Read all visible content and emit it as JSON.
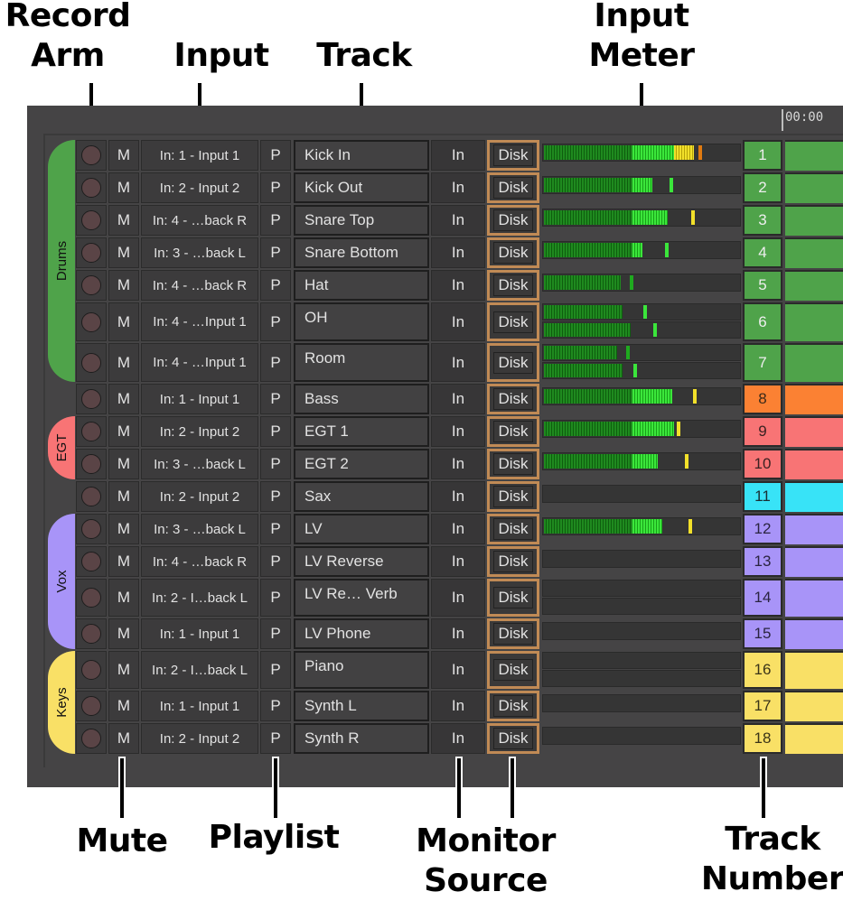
{
  "callouts": {
    "record_arm": "Record\nArm",
    "input": "Input",
    "track": "Track",
    "input_meter": "Input\nMeter",
    "mute": "Mute",
    "playlist": "Playlist",
    "monitor_source": "Monitor\nSource",
    "track_number": "Track\nNumber"
  },
  "timeline": {
    "time": "00:00"
  },
  "groups": [
    {
      "name": "Drums",
      "color": "#4fa34a",
      "text_color": "#111111"
    },
    {
      "name": "EGT",
      "color": "#f87475",
      "text_color": "#111111"
    },
    {
      "name": "Vox",
      "color": "#a894f8",
      "text_color": "#111111"
    },
    {
      "name": "Keys",
      "color": "#f9e066",
      "text_color": "#111111"
    }
  ],
  "colors": {
    "panel": "#454445",
    "disk_border": "#c08a55",
    "record_dot": "#5a4446",
    "meter_green": "#1f8a1f",
    "meter_bright": "#3be63b",
    "meter_yellow": "#f2e02a",
    "meter_orange": "#e07a10"
  },
  "tracks": [
    {
      "number": "1",
      "rec": "",
      "mute": "M",
      "input": "In: 1 - Input 1",
      "playlist": "P",
      "name": "Kick In",
      "monitor": "In",
      "source": "Disk",
      "color": "#4fa34a",
      "num_color": "#eeeeee"
    },
    {
      "number": "2",
      "rec": "",
      "mute": "M",
      "input": "In: 2 - Input 2",
      "playlist": "P",
      "name": "Kick Out",
      "monitor": "In",
      "source": "Disk",
      "color": "#4fa34a",
      "num_color": "#eeeeee"
    },
    {
      "number": "3",
      "rec": "",
      "mute": "M",
      "input": "In: 4 - …back R",
      "playlist": "P",
      "name": "Snare Top",
      "monitor": "In",
      "source": "Disk",
      "color": "#4fa34a",
      "num_color": "#eeeeee"
    },
    {
      "number": "4",
      "rec": "",
      "mute": "M",
      "input": "In: 3 - …back L",
      "playlist": "P",
      "name": "Snare Bottom",
      "monitor": "In",
      "source": "Disk",
      "color": "#4fa34a",
      "num_color": "#eeeeee"
    },
    {
      "number": "5",
      "rec": "",
      "mute": "M",
      "input": "In: 4 - …back R",
      "playlist": "P",
      "name": "Hat",
      "monitor": "In",
      "source": "Disk",
      "color": "#4fa34a",
      "num_color": "#eeeeee"
    },
    {
      "number": "6",
      "rec": "",
      "mute": "M",
      "input": "In: 4 - …Input 1",
      "playlist": "P",
      "name": "OH",
      "monitor": "In",
      "source": "Disk",
      "color": "#4fa34a",
      "num_color": "#eeeeee"
    },
    {
      "number": "7",
      "rec": "",
      "mute": "M",
      "input": "In: 4 - …Input 1",
      "playlist": "P",
      "name": "Room",
      "monitor": "In",
      "source": "Disk",
      "color": "#4fa34a",
      "num_color": "#eeeeee"
    },
    {
      "number": "8",
      "rec": "",
      "mute": "M",
      "input": "In: 1 - Input 1",
      "playlist": "P",
      "name": "Bass",
      "monitor": "In",
      "source": "Disk",
      "color": "#fb8133",
      "num_color": "#3a2a1a"
    },
    {
      "number": "9",
      "rec": "",
      "mute": "M",
      "input": "In: 2 - Input 2",
      "playlist": "P",
      "name": "EGT 1",
      "monitor": "In",
      "source": "Disk",
      "color": "#f87475",
      "num_color": "#3a2222"
    },
    {
      "number": "10",
      "rec": "",
      "mute": "M",
      "input": "In: 3 - …back L",
      "playlist": "P",
      "name": "EGT 2",
      "monitor": "In",
      "source": "Disk",
      "color": "#f87475",
      "num_color": "#3a2222"
    },
    {
      "number": "11",
      "rec": "",
      "mute": "M",
      "input": "In: 2 - Input 2",
      "playlist": "P",
      "name": "Sax",
      "monitor": "In",
      "source": "Disk",
      "color": "#38e3f7",
      "num_color": "#1a2e33"
    },
    {
      "number": "12",
      "rec": "",
      "mute": "M",
      "input": "In: 3 - …back L",
      "playlist": "P",
      "name": "LV",
      "monitor": "In",
      "source": "Disk",
      "color": "#a894f8",
      "num_color": "#2a2440"
    },
    {
      "number": "13",
      "rec": "",
      "mute": "M",
      "input": "In: 4 - …back R",
      "playlist": "P",
      "name": "LV Reverse",
      "monitor": "In",
      "source": "Disk",
      "color": "#a894f8",
      "num_color": "#2a2440"
    },
    {
      "number": "14",
      "rec": "",
      "mute": "M",
      "input": "In: 2 - I…back L",
      "playlist": "P",
      "name": "LV Re… Verb",
      "monitor": "In",
      "source": "Disk",
      "color": "#a894f8",
      "num_color": "#2a2440"
    },
    {
      "number": "15",
      "rec": "",
      "mute": "M",
      "input": "In: 1 - Input 1",
      "playlist": "P",
      "name": "LV Phone",
      "monitor": "In",
      "source": "Disk",
      "color": "#a894f8",
      "num_color": "#2a2440"
    },
    {
      "number": "16",
      "rec": "",
      "mute": "M",
      "input": "In: 2 - I…back L",
      "playlist": "P",
      "name": "Piano",
      "monitor": "In",
      "source": "Disk",
      "color": "#f9e066",
      "num_color": "#3a3418"
    },
    {
      "number": "17",
      "rec": "",
      "mute": "M",
      "input": "In: 1 - Input 1",
      "playlist": "P",
      "name": "Synth L",
      "monitor": "In",
      "source": "Disk",
      "color": "#f9e066",
      "num_color": "#3a3418"
    },
    {
      "number": "18",
      "rec": "",
      "mute": "M",
      "input": "In: 2 - Input 2",
      "playlist": "P",
      "name": "Synth R",
      "monitor": "In",
      "source": "Disk",
      "color": "#f9e066",
      "num_color": "#3a3418"
    }
  ],
  "meters": [
    {
      "channels": [
        {
          "fill": 0.76,
          "bright_from": 0.45,
          "yellow_from": 0.66,
          "peak": 0.79,
          "peak_color": "#e07a10"
        }
      ]
    },
    {
      "channels": [
        {
          "fill": 0.55,
          "bright_from": 0.45,
          "peak": 0.64,
          "peak_color": "#3be63b"
        }
      ]
    },
    {
      "channels": [
        {
          "fill": 0.63,
          "bright_from": 0.45,
          "peak": 0.75,
          "peak_color": "#f2e02a"
        }
      ]
    },
    {
      "channels": [
        {
          "fill": 0.5,
          "bright_from": 0.45,
          "peak": 0.62,
          "peak_color": "#3be63b"
        }
      ]
    },
    {
      "channels": [
        {
          "fill": 0.39,
          "bright_from": 1.0,
          "peak": 0.44,
          "peak_color": "#1faa1f"
        }
      ]
    },
    {
      "channels": [
        {
          "fill": 0.4,
          "bright_from": 1.0,
          "peak": 0.51,
          "peak_color": "#3be63b"
        },
        {
          "fill": 0.44,
          "bright_from": 1.0,
          "peak": 0.56,
          "peak_color": "#3be63b"
        }
      ]
    },
    {
      "channels": [
        {
          "fill": 0.37,
          "bright_from": 1.0,
          "peak": 0.42,
          "peak_color": "#1faa1f"
        },
        {
          "fill": 0.4,
          "bright_from": 1.0,
          "peak": 0.46,
          "peak_color": "#3be63b"
        }
      ]
    },
    {
      "channels": [
        {
          "fill": 0.65,
          "bright_from": 0.45,
          "peak": 0.76,
          "peak_color": "#f2e02a"
        }
      ]
    },
    {
      "channels": [
        {
          "fill": 0.66,
          "bright_from": 0.45,
          "peak": 0.68,
          "peak_color": "#f2e02a"
        }
      ]
    },
    {
      "channels": [
        {
          "fill": 0.58,
          "bright_from": 0.45,
          "peak": 0.72,
          "peak_color": "#f2e02a"
        }
      ]
    },
    {
      "channels": [
        {
          "fill": 0.0,
          "bright_from": 1.0,
          "peak": -1,
          "peak_color": ""
        }
      ]
    },
    {
      "channels": [
        {
          "fill": 0.6,
          "bright_from": 0.45,
          "peak": 0.74,
          "peak_color": "#f2e02a"
        }
      ]
    },
    {
      "channels": [
        {
          "fill": 0.0,
          "bright_from": 1.0,
          "peak": -1,
          "peak_color": ""
        }
      ]
    },
    {
      "channels": [
        {
          "fill": 0.0,
          "bright_from": 1.0,
          "peak": -1,
          "peak_color": ""
        },
        {
          "fill": 0.0,
          "bright_from": 1.0,
          "peak": -1,
          "peak_color": ""
        }
      ]
    },
    {
      "channels": [
        {
          "fill": 0.0,
          "bright_from": 1.0,
          "peak": -1,
          "peak_color": ""
        }
      ]
    },
    {
      "channels": [
        {
          "fill": 0.0,
          "bright_from": 1.0,
          "peak": -1,
          "peak_color": ""
        },
        {
          "fill": 0.0,
          "bright_from": 1.0,
          "peak": -1,
          "peak_color": ""
        }
      ]
    },
    {
      "channels": [
        {
          "fill": 0.0,
          "bright_from": 1.0,
          "peak": -1,
          "peak_color": ""
        }
      ]
    },
    {
      "channels": [
        {
          "fill": 0.0,
          "bright_from": 1.0,
          "peak": -1,
          "peak_color": ""
        }
      ]
    }
  ]
}
